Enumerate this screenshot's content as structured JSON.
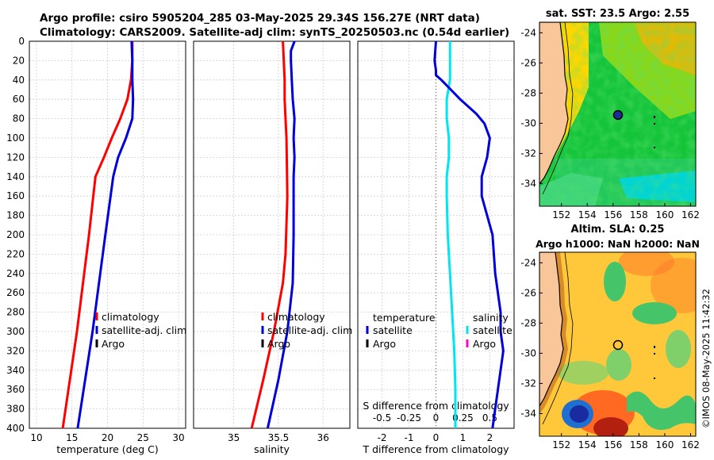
{
  "header": {
    "title_line1": "Argo profile: csiro 5905204_285 03-May-2025 29.34S 156.27E (NRT data)",
    "title_line2": "Climatology: CARS2009. Satellite-adj clim: synTS_20250503.nc (0.54d earlier)"
  },
  "colors": {
    "climatology": "#ff0000",
    "satellite": "#0000dd",
    "argo": "#000000",
    "sal_satellite": "#00e5ee",
    "sal_argo": "#ff00cc",
    "land": "#f9c69a"
  },
  "chart_data": [
    {
      "type": "line",
      "name": "temperature-profile",
      "xlabel": "temperature (deg C)",
      "ylabel": "",
      "xlim": [
        9,
        31
      ],
      "ylim": [
        0,
        400
      ],
      "xticks": [
        "10",
        "15",
        "20",
        "25",
        "30"
      ],
      "yticks": [
        "0",
        "20",
        "40",
        "60",
        "80",
        "100",
        "120",
        "140",
        "160",
        "180",
        "200",
        "220",
        "240",
        "260",
        "280",
        "300",
        "320",
        "340",
        "360",
        "380",
        "400"
      ],
      "series": [
        {
          "name": "climatology",
          "depth": [
            0,
            20,
            40,
            60,
            80,
            100,
            120,
            140,
            200,
            300,
            400
          ],
          "values": [
            23.5,
            23.5,
            23.3,
            22.8,
            21.8,
            20.6,
            19.5,
            18.3,
            17.4,
            15.7,
            13.7
          ]
        },
        {
          "name": "satellite-adj. clim",
          "depth": [
            0,
            20,
            40,
            60,
            80,
            100,
            120,
            140,
            200,
            300,
            400
          ],
          "values": [
            23.4,
            23.5,
            23.5,
            23.6,
            23.5,
            22.6,
            21.5,
            20.8,
            19.7,
            17.9,
            15.8
          ]
        }
      ],
      "legend": [
        "climatology",
        "satellite-adj. clim",
        "Argo"
      ]
    },
    {
      "type": "line",
      "name": "salinity-profile",
      "xlabel": "salinity",
      "ylabel": "",
      "xlim": [
        34.55,
        36.3
      ],
      "ylim": [
        0,
        400
      ],
      "xticks": [
        "35",
        "35.5",
        "36"
      ],
      "series": [
        {
          "name": "climatology",
          "depth": [
            0,
            20,
            40,
            60,
            80,
            100,
            160,
            220,
            250,
            300,
            350,
            400
          ],
          "values": [
            35.55,
            35.56,
            35.57,
            35.57,
            35.58,
            35.59,
            35.6,
            35.58,
            35.55,
            35.45,
            35.33,
            35.2
          ]
        },
        {
          "name": "satellite-adj. clim",
          "depth": [
            0,
            10,
            20,
            40,
            60,
            80,
            100,
            120,
            140,
            200,
            250,
            300,
            350,
            400
          ],
          "values": [
            35.68,
            35.64,
            35.64,
            35.65,
            35.66,
            35.68,
            35.67,
            35.68,
            35.67,
            35.67,
            35.66,
            35.6,
            35.5,
            35.38
          ]
        }
      ],
      "legend": [
        "climatology",
        "satellite-adj. clim",
        "Argo"
      ]
    },
    {
      "type": "line",
      "name": "difference-profile",
      "xlabel": "T difference from climatology",
      "xlabel2": "S difference from climatology",
      "xlim": [
        -2.9,
        2.9
      ],
      "ylim": [
        0,
        400
      ],
      "xticks": [
        "-2",
        "-1",
        "0",
        "1",
        "2"
      ],
      "xticks2": [
        "-0.5",
        "-0.25",
        "0",
        "0.25",
        "0.5"
      ],
      "series": [
        {
          "name": "temperature satellite",
          "depth": [
            0,
            20,
            30,
            35,
            40,
            60,
            75,
            85,
            100,
            120,
            140,
            160,
            180,
            200,
            240,
            280,
            300,
            320,
            340,
            360,
            380,
            400
          ],
          "values": [
            0.0,
            -0.05,
            0.0,
            0.0,
            0.2,
            0.9,
            1.5,
            1.8,
            2.0,
            1.9,
            1.7,
            1.7,
            1.9,
            2.1,
            2.2,
            2.4,
            2.4,
            2.5,
            2.4,
            2.3,
            2.2,
            2.1
          ]
        },
        {
          "name": "salinity satellite",
          "depth": [
            0,
            20,
            40,
            60,
            80,
            100,
            120,
            140,
            160,
            200,
            240,
            280,
            320,
            360,
            400
          ],
          "values": [
            0.13,
            0.13,
            0.13,
            0.1,
            0.1,
            0.12,
            0.12,
            0.1,
            0.1,
            0.11,
            0.13,
            0.15,
            0.17,
            0.18,
            0.18
          ]
        }
      ],
      "legend_temperature": {
        "heading": "temperature",
        "items": [
          "satellite",
          "Argo"
        ]
      },
      "legend_salinity": {
        "heading": "salinity",
        "items": [
          "satellite",
          "Argo"
        ]
      }
    }
  ],
  "maps": {
    "sst": {
      "title": "sat. SST: 23.5 Argo: 2.55",
      "lat_ticks": [
        "-24",
        "-26",
        "-28",
        "-30",
        "-32",
        "-34"
      ],
      "lon_ticks": [
        "152",
        "154",
        "156",
        "158",
        "160",
        "162"
      ],
      "lat_range": [
        -35.5,
        -23.3
      ],
      "lon_range": [
        150.3,
        162.4
      ],
      "argo_position": {
        "lon": 156.27,
        "lat": -29.34
      }
    },
    "sla": {
      "title_line1": "Altim. SLA: 0.25",
      "title_line2": "Argo h1000: NaN h2000: NaN",
      "lat_ticks": [
        "-24",
        "-26",
        "-28",
        "-30",
        "-32",
        "-34"
      ],
      "lon_ticks": [
        "152",
        "154",
        "156",
        "158",
        "160",
        "162"
      ],
      "lat_range": [
        -35.5,
        -23.3
      ],
      "lon_range": [
        150.3,
        162.4
      ],
      "argo_position": {
        "lon": 156.27,
        "lat": -29.34
      }
    }
  },
  "footer": {
    "stamp": "©IMOS 08-May-2025 11:42:32"
  }
}
